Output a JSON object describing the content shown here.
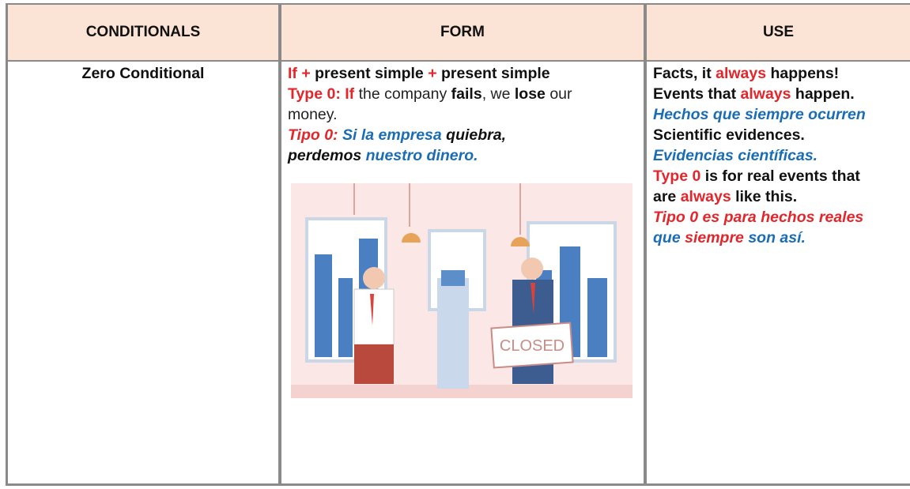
{
  "table": {
    "header": [
      "CONDITIONALS",
      "FORM",
      "USE"
    ],
    "row": {
      "conditional": "Zero Conditional",
      "form": {
        "lines": [
          [
            {
              "text": "If + ",
              "color": "#e3262b",
              "bold": true
            },
            {
              "text": "present simple ",
              "color": "#111111",
              "bold": true
            },
            {
              "text": "+ ",
              "color": "#e3262b",
              "bold": true
            },
            {
              "text": "present simple",
              "color": "#111111",
              "bold": true
            }
          ],
          [
            {
              "text": "Type 0: If ",
              "color": "#e3262b",
              "bold": true
            },
            {
              "text": "the company ",
              "color": "#222222"
            },
            {
              "text": "fails",
              "color": "#111111",
              "bold": true
            },
            {
              "text": ", we ",
              "color": "#222222"
            },
            {
              "text": "lose ",
              "color": "#111111",
              "bold": true
            },
            {
              "text": "our",
              "color": "#222222"
            }
          ],
          [
            {
              "text": "money.",
              "color": "#222222"
            }
          ],
          [
            {
              "text": "Tipo 0: ",
              "color": "#e3262b",
              "bold": true,
              "italic": true
            },
            {
              "text": "Si la empresa ",
              "color": "#1a6db5",
              "bold": true,
              "italic": true
            },
            {
              "text": "quiebra,",
              "color": "#111111",
              "bold": true,
              "italic": true
            }
          ],
          [
            {
              "text": "perdemos ",
              "color": "#111111",
              "bold": true,
              "italic": true
            },
            {
              "text": "nuestro dinero.",
              "color": "#1a6db5",
              "bold": true,
              "italic": true
            }
          ]
        ],
        "sign": "CLOSED"
      },
      "use": {
        "lines": [
          [
            {
              "text": "Facts, it ",
              "color": "#111111",
              "bold": true
            },
            {
              "text": "always ",
              "color": "#e3262b",
              "bold": true
            },
            {
              "text": "happens!",
              "color": "#111111",
              "bold": true
            }
          ],
          [
            {
              "text": "Events that ",
              "color": "#111111",
              "bold": true
            },
            {
              "text": "always ",
              "color": "#e3262b",
              "bold": true
            },
            {
              "text": "happen.",
              "color": "#111111",
              "bold": true
            }
          ],
          [
            {
              "text": "Hechos que siempre ocurren",
              "color": "#1a6db5",
              "bold": true,
              "italic": true
            }
          ],
          [
            {
              "text": "Scientific evidences.",
              "color": "#111111",
              "bold": true
            }
          ],
          [
            {
              "text": "Evidencias científicas.",
              "color": "#1a6db5",
              "bold": true,
              "italic": true
            }
          ],
          [
            {
              "text": "Type 0 ",
              "color": "#e3262b",
              "bold": true
            },
            {
              "text": "is for real events that",
              "color": "#111111",
              "bold": true
            }
          ],
          [
            {
              "text": "are ",
              "color": "#111111",
              "bold": true
            },
            {
              "text": "always ",
              "color": "#e3262b",
              "bold": true
            },
            {
              "text": "like this.",
              "color": "#111111",
              "bold": true
            }
          ],
          [
            {
              "text": "Tipo 0 es para hechos reales",
              "color": "#e3262b",
              "bold": true,
              "italic": true
            }
          ],
          [
            {
              "text": "que ",
              "color": "#1a6db5",
              "bold": true,
              "italic": true
            },
            {
              "text": "siempre ",
              "color": "#e3262b",
              "bold": true,
              "italic": true
            },
            {
              "text": "son así.",
              "color": "#1a6db5",
              "bold": true,
              "italic": true
            }
          ]
        ]
      }
    }
  }
}
